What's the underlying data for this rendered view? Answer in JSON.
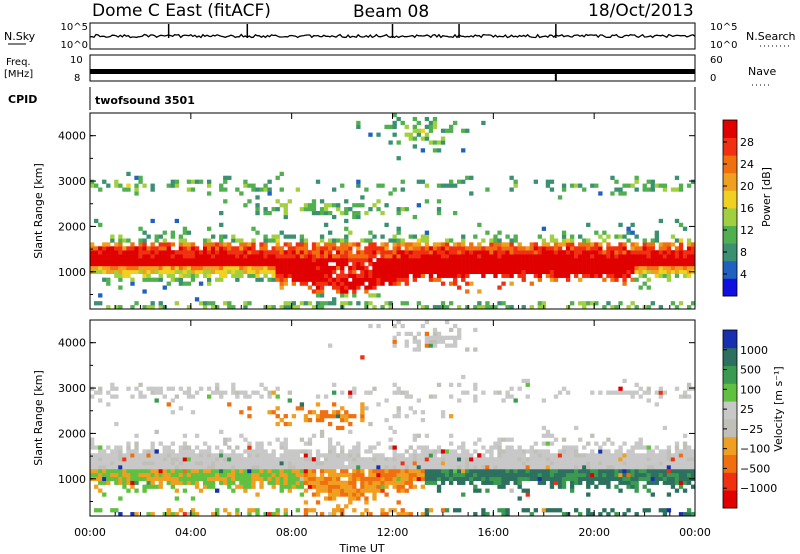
{
  "header": {
    "station": "Dome C East (fitACF)",
    "beam": "Beam 08",
    "date": "18/Oct/2013"
  },
  "top_panels": {
    "nsky_label": "N.Sky",
    "nsky_ticks": [
      "10^5",
      "10^0"
    ],
    "nsearch_label": "N.Search",
    "nsearch_ticks": [
      "10^5",
      "10^0"
    ],
    "freq_label_1": "Freq.",
    "freq_label_2": "[MHz]",
    "freq_ticks": [
      "10",
      "8"
    ],
    "nave_label": "Nave",
    "nave_ticks": [
      "60",
      "0"
    ],
    "cpid_label": "CPID",
    "cpid_value": "twofsound 3501"
  },
  "chart_data": [
    {
      "type": "heatmap",
      "name": "power",
      "ylabel": "Slant Range [km]",
      "yticks": [
        "1000",
        "2000",
        "3000",
        "4000"
      ],
      "ylim": [
        180,
        4500
      ],
      "colorbar_label": "Power [dB]",
      "colorbar_ticks": [
        "4",
        "8",
        "12",
        "16",
        "20",
        "24",
        "28"
      ],
      "colorbar_colors": [
        "#1010e0",
        "#2060c0",
        "#3a9070",
        "#50b050",
        "#a0d040",
        "#f0d020",
        "#f0a020",
        "#f07010",
        "#f03010",
        "#e00000"
      ]
    },
    {
      "type": "heatmap",
      "name": "velocity",
      "ylabel": "Slant Range [km]",
      "yticks": [
        "1000",
        "2000",
        "3000",
        "4000"
      ],
      "ylim": [
        180,
        4500
      ],
      "xlabel": "Time UT",
      "xticks": [
        "00:00",
        "04:00",
        "08:00",
        "12:00",
        "16:00",
        "20:00",
        "00:00"
      ],
      "colorbar_label": "Velocity [m s⁻¹]",
      "colorbar_ticks": [
        "1000",
        "500",
        "100",
        "25",
        "−25",
        "−100",
        "−500",
        "−1000"
      ],
      "colorbar_colors": [
        "#1830b0",
        "#2e7060",
        "#3a9a50",
        "#60c040",
        "#c8c8c8",
        "#c0c0b8",
        "#f0a020",
        "#f07010",
        "#f03010",
        "#e00000"
      ]
    }
  ]
}
